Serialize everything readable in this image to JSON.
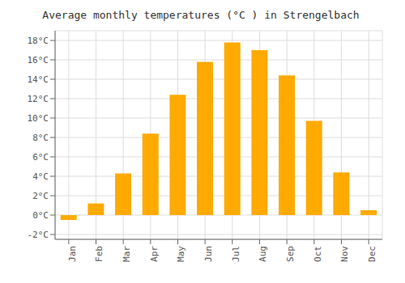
{
  "chart_data": {
    "type": "bar",
    "title": "Average monthly temperatures (°C ) in Strengelbach",
    "categories": [
      "Jan",
      "Feb",
      "Mar",
      "Apr",
      "May",
      "Jun",
      "Jul",
      "Aug",
      "Sep",
      "Oct",
      "Nov",
      "Dec"
    ],
    "values": [
      -0.5,
      1.2,
      4.3,
      8.4,
      12.4,
      15.8,
      17.8,
      17.0,
      14.4,
      9.7,
      4.4,
      0.5
    ],
    "color": "#FFAA00",
    "ylim": [
      -2.5,
      19
    ],
    "yticks": [
      {
        "value": -2,
        "label": "-2°C"
      },
      {
        "value": 0,
        "label": "0°C"
      },
      {
        "value": 2,
        "label": "2°C"
      },
      {
        "value": 4,
        "label": "4°C"
      },
      {
        "value": 6,
        "label": "6°C"
      },
      {
        "value": 8,
        "label": "8°C"
      },
      {
        "value": 10,
        "label": "10°C"
      },
      {
        "value": 12,
        "label": "12°C"
      },
      {
        "value": 14,
        "label": "14°C"
      },
      {
        "value": 16,
        "label": "16°C"
      },
      {
        "value": 18,
        "label": "18°C"
      }
    ],
    "grid": true
  }
}
